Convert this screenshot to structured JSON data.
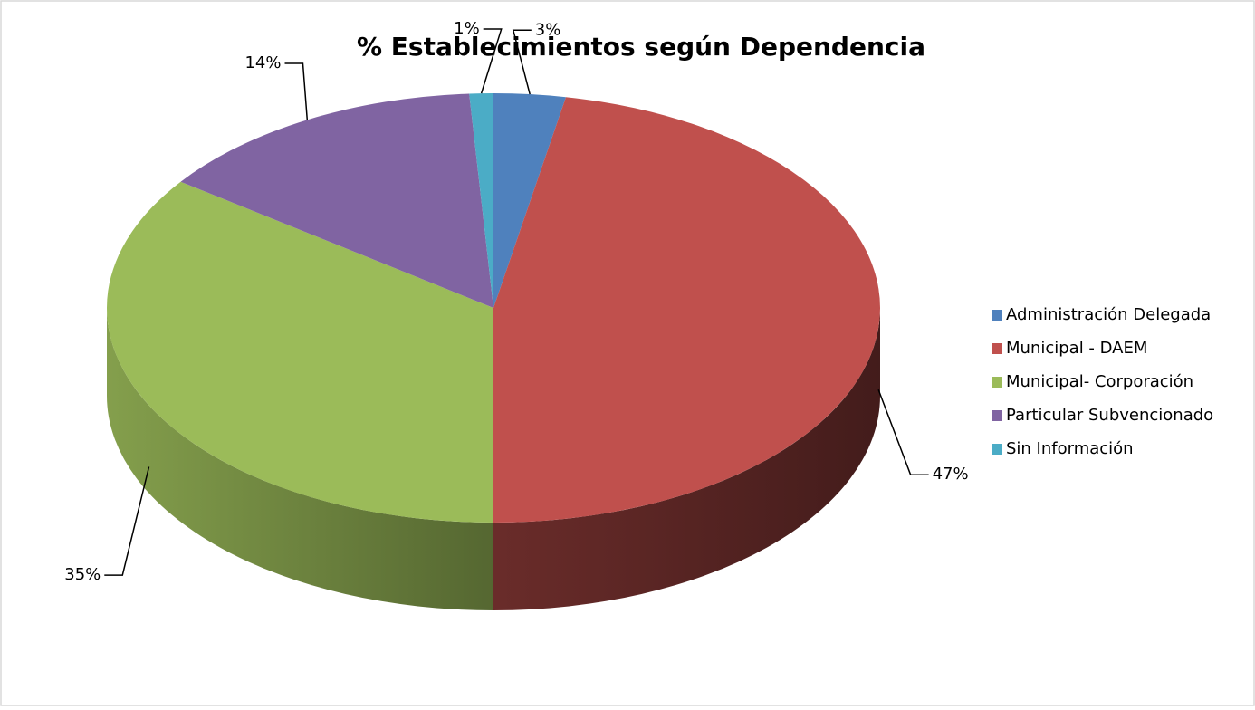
{
  "chart_data": {
    "type": "pie",
    "title": "% Establecimientos según Dependencia",
    "categories": [
      "Administración Delegada",
      "Municipal - DAEM",
      "Municipal- Corporación",
      "Particular Subvencionado",
      "Sin Información"
    ],
    "values": [
      3,
      47,
      35,
      14,
      1
    ],
    "value_labels": [
      "3%",
      "47%",
      "35%",
      "14%",
      "1%"
    ],
    "colors": [
      "#4f81bd",
      "#c0504d",
      "#9bbb59",
      "#8064a2",
      "#4bacc6"
    ],
    "legend": "right"
  }
}
